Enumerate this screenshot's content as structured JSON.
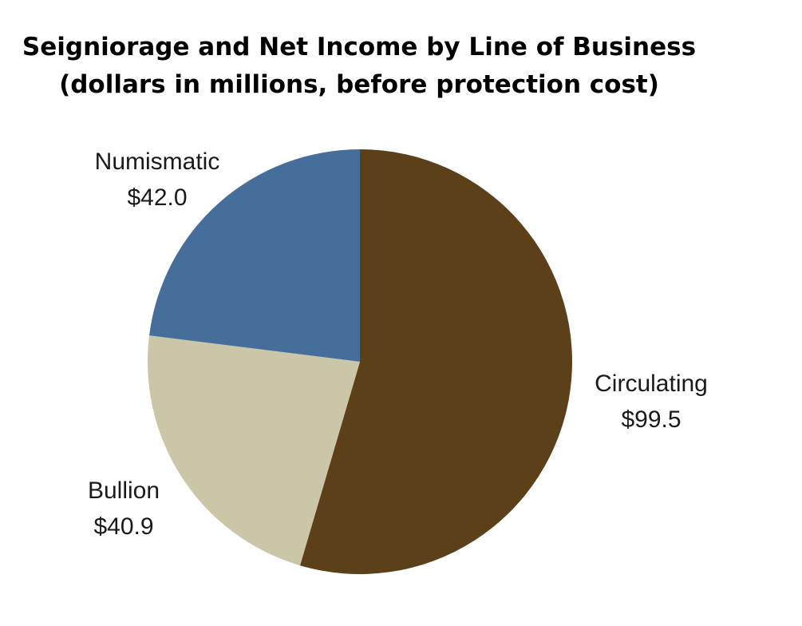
{
  "chart_data": {
    "type": "pie",
    "title": "Seigniorage and Net Income by Line of Business",
    "subtitle": "(dollars in millions, before protection cost)",
    "slices": [
      {
        "name": "Circulating",
        "value": 99.5,
        "label": "$99.5",
        "color": "#5c4019"
      },
      {
        "name": "Bullion",
        "value": 40.9,
        "label": "$40.9",
        "color": "#ccc6a8"
      },
      {
        "name": "Numismatic",
        "value": 42.0,
        "label": "$42.0",
        "color": "#456e9a"
      }
    ],
    "start_angle_deg": 0,
    "direction": "clockwise",
    "legend": "none"
  }
}
